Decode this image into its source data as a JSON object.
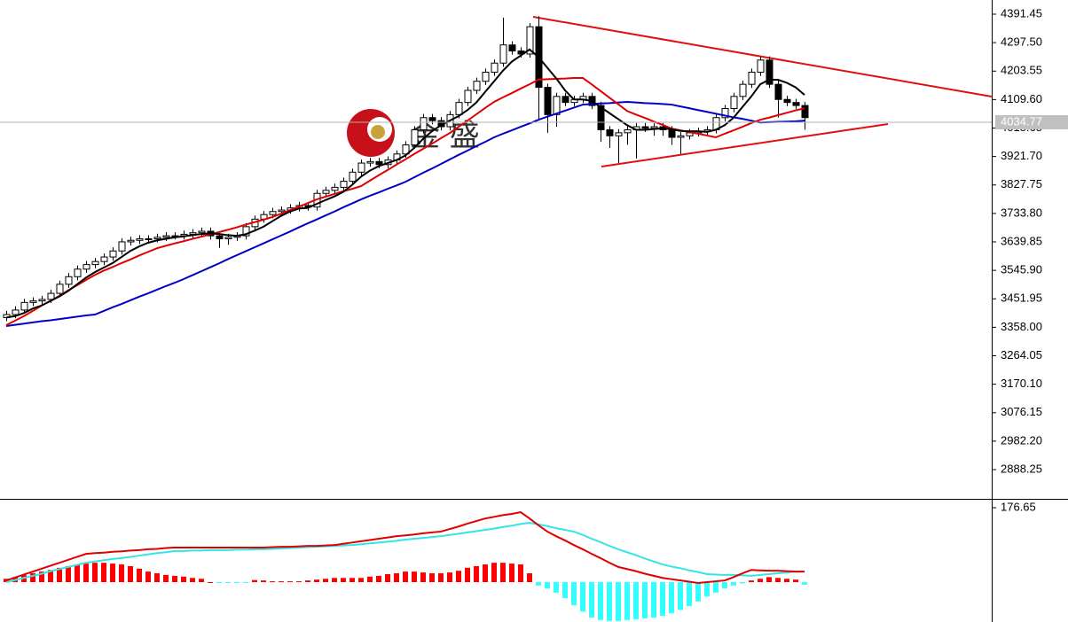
{
  "chart_data": [
    {
      "type": "candlestick",
      "watermark": "金 盛",
      "ylim": [
        2794.7,
        4438.25
      ],
      "yticks": [
        4391.45,
        {
          "value": 4297.5,
          "label": "4297.50"
        },
        4203.55,
        {
          "value": 4109.6,
          "label": "4109.60"
        },
        4015.65,
        {
          "value": 3921.7,
          "label": "3921.70"
        },
        3827.75,
        {
          "value": 3733.8,
          "label": "3733.80"
        },
        3639.85,
        {
          "value": 3545.9,
          "label": "3545.90"
        },
        3451.95,
        {
          "value": 3358,
          "label": "3358.00"
        },
        3264.05,
        {
          "value": 3170.1,
          "label": "3170.10"
        },
        3076.15,
        {
          "value": 2982.2,
          "label": "2982.20"
        },
        2888.25
      ],
      "current_price": 4034.77,
      "up_color": "#ffffff",
      "down_color": "#000000",
      "open": [
        3390,
        3400,
        3415,
        3440,
        3445,
        3450,
        3470,
        3500,
        3525,
        3550,
        3565,
        3575,
        3590,
        3610,
        3640,
        3645,
        3650,
        3650,
        3655,
        3660,
        3660,
        3665,
        3670,
        3675,
        3660,
        3650,
        3655,
        3660,
        3690,
        3715,
        3730,
        3740,
        3745,
        3752,
        3760,
        3755,
        3800,
        3810,
        3820,
        3840,
        3870,
        3900,
        3905,
        3895,
        3910,
        3930,
        3960,
        4010,
        4050,
        4040,
        4020,
        4060,
        4100,
        4140,
        4170,
        4200,
        4230,
        4290,
        4270,
        4260,
        4350,
        4150,
        4060,
        4120,
        4100,
        4110,
        4120,
        4090,
        4010,
        3990,
        4000,
        4010,
        4020,
        4015,
        4020,
        4010,
        3985,
        3990,
        4000,
        4005,
        4010,
        4050,
        4080,
        4120,
        4160,
        4200,
        4240,
        4160,
        4110,
        4100,
        4090
      ],
      "high": [
        3412,
        3427,
        3452,
        3457,
        3462,
        3482,
        3512,
        3537,
        3562,
        3577,
        3587,
        3602,
        3622,
        3652,
        3657,
        3662,
        3662,
        3667,
        3672,
        3672,
        3677,
        3682,
        3687,
        3687,
        3672,
        3667,
        3672,
        3702,
        3727,
        3742,
        3752,
        3757,
        3764,
        3772,
        3772,
        3812,
        3822,
        3832,
        3852,
        3882,
        3912,
        3917,
        3917,
        3922,
        3942,
        3972,
        4022,
        4062,
        4062,
        4052,
        4072,
        4112,
        4152,
        4182,
        4212,
        4242,
        4380,
        4302,
        4282,
        4362,
        4385,
        4162,
        4132,
        4132,
        4122,
        4132,
        4132,
        4102,
        4022,
        4012,
        4022,
        4032,
        4032,
        4032,
        4032,
        4022,
        4002,
        4012,
        4017,
        4022,
        4062,
        4092,
        4132,
        4172,
        4212,
        4250,
        4252,
        4172,
        4122,
        4112,
        4102
      ],
      "low": [
        3378,
        3388,
        3403,
        3428,
        3433,
        3438,
        3458,
        3488,
        3513,
        3538,
        3553,
        3563,
        3578,
        3598,
        3628,
        3633,
        3638,
        3638,
        3643,
        3648,
        3648,
        3653,
        3658,
        3648,
        3620,
        3630,
        3643,
        3648,
        3678,
        3703,
        3718,
        3728,
        3733,
        3740,
        3743,
        3743,
        3788,
        3798,
        3808,
        3828,
        3858,
        3888,
        3883,
        3883,
        3898,
        3918,
        3948,
        3998,
        4028,
        4008,
        4008,
        4048,
        4088,
        4128,
        4158,
        4188,
        4218,
        4258,
        4248,
        4248,
        4040,
        4000,
        4020,
        4088,
        4088,
        4098,
        4078,
        3970,
        3950,
        3900,
        3960,
        3915,
        4003,
        3990,
        3990,
        3960,
        3930,
        3978,
        3988,
        3993,
        3998,
        4038,
        4068,
        4108,
        4148,
        4188,
        4148,
        4050,
        4088,
        4078,
        4010
      ],
      "close": [
        3400,
        3415,
        3440,
        3445,
        3450,
        3470,
        3500,
        3525,
        3550,
        3565,
        3575,
        3590,
        3610,
        3640,
        3645,
        3650,
        3650,
        3655,
        3660,
        3660,
        3665,
        3670,
        3675,
        3660,
        3650,
        3655,
        3660,
        3690,
        3715,
        3730,
        3740,
        3745,
        3752,
        3760,
        3755,
        3800,
        3810,
        3820,
        3840,
        3870,
        3900,
        3905,
        3895,
        3910,
        3930,
        3960,
        4010,
        4050,
        4040,
        4020,
        4060,
        4100,
        4140,
        4170,
        4200,
        4230,
        4290,
        4270,
        4260,
        4350,
        4150,
        4060,
        4120,
        4100,
        4110,
        4120,
        4090,
        4010,
        3990,
        4000,
        4010,
        4020,
        4015,
        4020,
        4010,
        3985,
        3990,
        4000,
        4005,
        4010,
        4050,
        4080,
        4120,
        4160,
        4200,
        4240,
        4160,
        4110,
        4100,
        4090,
        4050
      ],
      "series": [
        {
          "color": "#0000c8",
          "values": [
            3362,
            3366,
            3370,
            3374,
            3378,
            3381,
            3385,
            3389,
            3393,
            3397,
            3400,
            3412,
            3424,
            3435,
            3447,
            3459,
            3470,
            3482,
            3494,
            3505,
            3517,
            3530,
            3543,
            3556,
            3569,
            3583,
            3596,
            3609,
            3622,
            3635,
            3648,
            3661,
            3674,
            3688,
            3701,
            3714,
            3727,
            3740,
            3754,
            3767,
            3780,
            3792,
            3803,
            3815,
            3826,
            3838,
            3853,
            3868,
            3882,
            3897,
            3912,
            3927,
            3941,
            3956,
            3970,
            3985,
            3997,
            4008,
            4020,
            4031,
            4043,
            4053,
            4063,
            4073,
            4083,
            4093,
            4095,
            4097,
            4098,
            4100,
            4102,
            4100,
            4098,
            4097,
            4095,
            4093,
            4087,
            4081,
            4075,
            4069,
            4063,
            4057,
            4051,
            4046,
            4040,
            4034,
            4035,
            4036,
            4037,
            4038,
            4040
          ]
        },
        {
          "color": "#e00000",
          "values": [
            3365,
            3380,
            3395,
            3412,
            3430,
            3445,
            3462,
            3480,
            3497,
            3514,
            3531,
            3545,
            3557,
            3570,
            3582,
            3595,
            3607,
            3619,
            3627,
            3635,
            3642,
            3650,
            3657,
            3665,
            3672,
            3680,
            3688,
            3697,
            3705,
            3713,
            3722,
            3733,
            3745,
            3756,
            3768,
            3780,
            3789,
            3798,
            3807,
            3815,
            3824,
            3842,
            3860,
            3877,
            3895,
            3912,
            3930,
            3947,
            3964,
            3982,
            3999,
            4020,
            4040,
            4061,
            4082,
            4102,
            4117,
            4131,
            4146,
            4160,
            4175,
            4177,
            4178,
            4179,
            4181,
            4181,
            4160,
            4138,
            4116,
            4094,
            4072,
            4060,
            4049,
            4037,
            4026,
            4014,
            4008,
            4002,
            3997,
            3991,
            3985,
            3997,
            4008,
            4020,
            4032,
            4043,
            4050,
            4058,
            4066,
            4074,
            4081
          ]
        },
        {
          "color": "#000000",
          "values": [
            3390,
            3395,
            3405,
            3420,
            3430,
            3445,
            3460,
            3478,
            3500,
            3522,
            3540,
            3555,
            3570,
            3590,
            3610,
            3625,
            3637,
            3645,
            3650,
            3655,
            3658,
            3662,
            3666,
            3668,
            3666,
            3662,
            3660,
            3665,
            3677,
            3690,
            3708,
            3726,
            3740,
            3750,
            3752,
            3765,
            3778,
            3790,
            3805,
            3828,
            3855,
            3875,
            3890,
            3900,
            3910,
            3925,
            3950,
            3980,
            4005,
            4025,
            4040,
            4055,
            4075,
            4100,
            4135,
            4170,
            4205,
            4235,
            4255,
            4275,
            4250,
            4215,
            4180,
            4140,
            4110,
            4110,
            4105,
            4085,
            4065,
            4045,
            4025,
            4010,
            4010,
            4012,
            4015,
            4012,
            4006,
            4005,
            4005,
            4003,
            4010,
            4025,
            4050,
            4085,
            4120,
            4160,
            4175,
            4175,
            4165,
            4150,
            4125
          ]
        }
      ]
    },
    {
      "type": "macd",
      "ylim": [
        -94.6,
        191.4
      ],
      "yticks": [
        176.65
      ],
      "color": "#ff0000",
      "negative_color": "#33ffff",
      "values": [
        8,
        12,
        17,
        21,
        25,
        29,
        34,
        38,
        42,
        44,
        46,
        46,
        44,
        42,
        38,
        32,
        25,
        21,
        17,
        15,
        13,
        10,
        8,
        0,
        -2,
        -2,
        -2,
        -1,
        5,
        4,
        2,
        2,
        2,
        2,
        4,
        6,
        8,
        10,
        10,
        10,
        10,
        13,
        15,
        19,
        21,
        25,
        25,
        23,
        21,
        21,
        23,
        27,
        34,
        38,
        42,
        46,
        46,
        44,
        42,
        21,
        -8,
        -15,
        -25,
        -38,
        -55,
        -70,
        -84,
        -90,
        -92,
        -92,
        -90,
        -88,
        -86,
        -84,
        -80,
        -74,
        -66,
        -57,
        -46,
        -34,
        -25,
        -15,
        -8,
        -3,
        4,
        8,
        12,
        10,
        8,
        6,
        -6
      ],
      "series": [
        {
          "color": "#33e6e6",
          "values": [
            0,
            5,
            10,
            15,
            20,
            26,
            31,
            36,
            41,
            46,
            49,
            52,
            55,
            57,
            60,
            63,
            66,
            69,
            71,
            74,
            74,
            75,
            75,
            76,
            76,
            76,
            77,
            77,
            78,
            78,
            79,
            80,
            81,
            82,
            83,
            84,
            85,
            86,
            87,
            88,
            90,
            92,
            94,
            96,
            98,
            101,
            103,
            105,
            107,
            109,
            112,
            115,
            118,
            121,
            124,
            127,
            131,
            134,
            138,
            141,
            137,
            133,
            128,
            124,
            120,
            112,
            103,
            95,
            86,
            78,
            71,
            64,
            56,
            49,
            42,
            37,
            33,
            28,
            24,
            19,
            18,
            17,
            17,
            16,
            15,
            17,
            19,
            21,
            23,
            25,
            25
          ]
        },
        {
          "color": "#e00000",
          "values": [
            4,
            11,
            18,
            25,
            32,
            39,
            46,
            53,
            60,
            67,
            69,
            70,
            72,
            73,
            75,
            76,
            78,
            79,
            81,
            82,
            82,
            82,
            82,
            82,
            82,
            82,
            82,
            82,
            82,
            82,
            83,
            84,
            84,
            85,
            86,
            86,
            87,
            88,
            91,
            94,
            97,
            100,
            103,
            106,
            109,
            111,
            113,
            116,
            118,
            120,
            126,
            132,
            139,
            145,
            151,
            155,
            159,
            162,
            166,
            151,
            135,
            120,
            109,
            99,
            88,
            78,
            67,
            57,
            46,
            36,
            31,
            26,
            20,
            15,
            10,
            7,
            4,
            1,
            -2,
            0,
            2,
            4,
            12,
            21,
            29,
            28,
            27,
            27,
            26,
            25,
            25
          ]
        }
      ]
    }
  ]
}
